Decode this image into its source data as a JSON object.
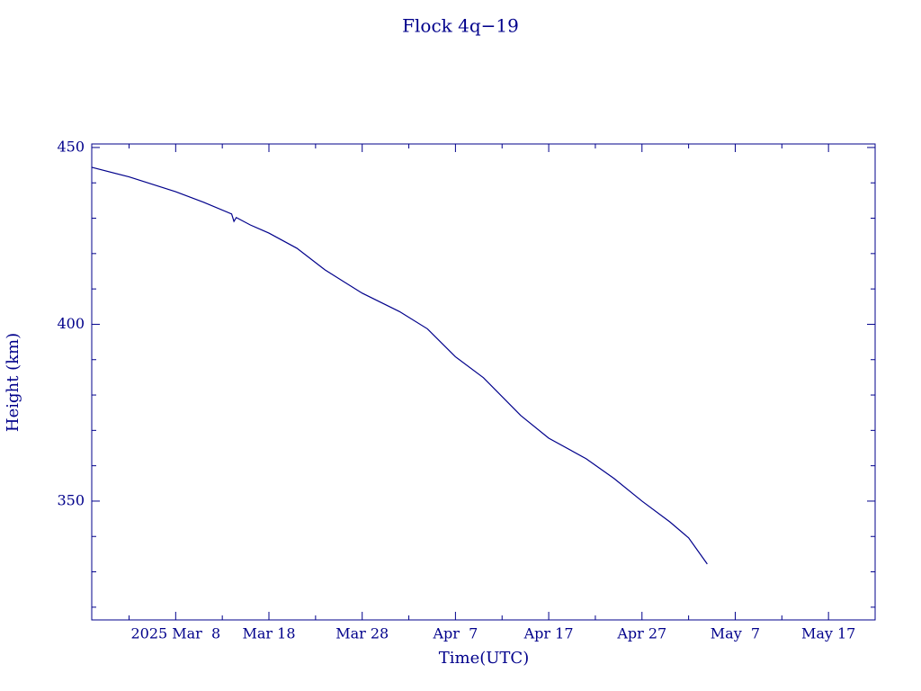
{
  "chart_data": {
    "type": "line",
    "title": "Flock 4q−19",
    "x_label": "Time(UTC)",
    "y_label": "Height (km)",
    "color": "#00008b",
    "x": [
      "2025-02-27",
      "2025-03-03",
      "2025-03-08",
      "2025-03-11",
      "2025-03-14",
      "2025-03-14T06:00",
      "2025-03-14T12:00",
      "2025-03-16",
      "2025-03-18",
      "2025-03-21",
      "2025-03-24",
      "2025-03-28",
      "2025-04-01",
      "2025-04-04",
      "2025-04-07",
      "2025-04-10",
      "2025-04-14",
      "2025-04-17",
      "2025-04-21",
      "2025-04-24",
      "2025-04-27",
      "2025-04-30",
      "2025-05-02",
      "2025-05-04"
    ],
    "series": [
      {
        "name": "Height",
        "color": "#00008b",
        "values": [
          444.4,
          441.7,
          437.5,
          434.5,
          431.2,
          429.1,
          430.2,
          428.1,
          425.8,
          421.5,
          415.4,
          408.8,
          403.6,
          398.7,
          390.8,
          384.9,
          374.2,
          367.8,
          362,
          356.4,
          350,
          344.1,
          339.6,
          332.2
        ]
      }
    ],
    "xlim": [
      "2025-02-27",
      "2025-05-22"
    ],
    "xticks": [
      {
        "value": "2025-03-08",
        "label": "2025 Mar  8"
      },
      {
        "value": "2025-03-18",
        "label": "Mar 18"
      },
      {
        "value": "2025-03-28",
        "label": "Mar 28"
      },
      {
        "value": "2025-04-07",
        "label": "Apr  7"
      },
      {
        "value": "2025-04-17",
        "label": "Apr 17"
      },
      {
        "value": "2025-04-27",
        "label": "Apr 27"
      },
      {
        "value": "2025-05-07",
        "label": "May  7"
      },
      {
        "value": "2025-05-17",
        "label": "May 17"
      }
    ],
    "xminorticks": [
      "2025-03-03",
      "2025-03-13",
      "2025-03-23",
      "2025-04-02",
      "2025-04-12",
      "2025-04-22",
      "2025-05-02",
      "2025-05-12",
      "2025-05-22"
    ],
    "ylim": [
      316.4,
      451
    ],
    "yticks": [
      350,
      400,
      450
    ],
    "yminorticks": [
      320,
      330,
      340,
      360,
      370,
      380,
      390,
      410,
      420,
      430,
      440
    ]
  }
}
